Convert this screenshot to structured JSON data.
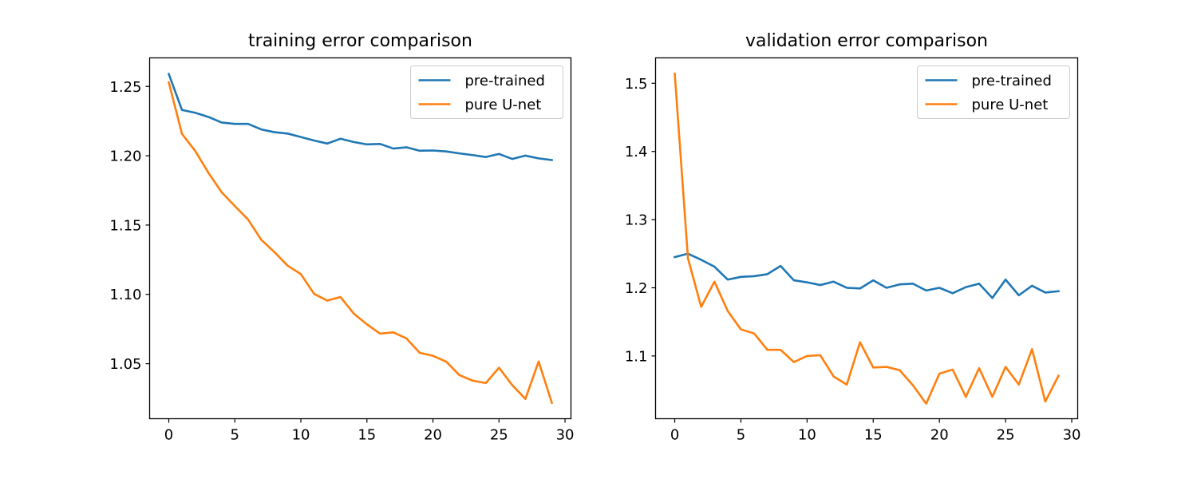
{
  "chart_data": [
    {
      "type": "line",
      "title": "training error comparison",
      "xlabel": "",
      "ylabel": "",
      "xlim": [
        -1.45,
        30.45
      ],
      "ylim": [
        1.0103,
        1.2706
      ],
      "xticks": [
        0,
        5,
        10,
        15,
        20,
        25,
        30
      ],
      "yticks": [
        1.05,
        1.1,
        1.15,
        1.2,
        1.25
      ],
      "ytick_labels": [
        "1.05",
        "1.10",
        "1.15",
        "1.20",
        "1.25"
      ],
      "grid": false,
      "legend": "top-right",
      "x": [
        0,
        1,
        2,
        3,
        4,
        5,
        6,
        7,
        8,
        9,
        10,
        11,
        12,
        13,
        14,
        15,
        16,
        17,
        18,
        19,
        20,
        21,
        22,
        23,
        24,
        25,
        26,
        27,
        28,
        29
      ],
      "series": [
        {
          "name": "pre-trained",
          "color": "#1f77b4",
          "values": [
            1.259,
            1.233,
            1.231,
            1.228,
            1.224,
            1.223,
            1.223,
            1.219,
            1.217,
            1.216,
            1.2135,
            1.211,
            1.2088,
            1.2123,
            1.2099,
            1.2082,
            1.2085,
            1.2052,
            1.2061,
            1.2036,
            1.2038,
            1.2031,
            1.2017,
            1.2005,
            1.1991,
            1.2013,
            1.1977,
            1.2001,
            1.1981,
            1.1969
          ]
        },
        {
          "name": "pure U-net",
          "color": "#ff7f0e",
          "values": [
            1.253,
            1.2158,
            1.2035,
            1.1877,
            1.1737,
            1.1637,
            1.154,
            1.1394,
            1.1305,
            1.1207,
            1.1146,
            1.1004,
            1.0955,
            1.0981,
            1.0862,
            1.0784,
            1.0717,
            1.0726,
            1.0682,
            1.0578,
            1.0557,
            1.0515,
            1.0418,
            1.0378,
            1.036,
            1.0471,
            1.0346,
            1.0246,
            1.0516,
            1.0218
          ]
        }
      ]
    },
    {
      "type": "line",
      "title": "validation error comparison",
      "xlabel": "",
      "ylabel": "",
      "xlim": [
        -1.45,
        30.45
      ],
      "ylim": [
        1.0079,
        1.5373
      ],
      "xticks": [
        0,
        5,
        10,
        15,
        20,
        25,
        30
      ],
      "yticks": [
        1.1,
        1.2,
        1.3,
        1.4,
        1.5
      ],
      "ytick_labels": [
        "1.1",
        "1.2",
        "1.3",
        "1.4",
        "1.5"
      ],
      "grid": false,
      "legend": "top-right",
      "x": [
        0,
        1,
        2,
        3,
        4,
        5,
        6,
        7,
        8,
        9,
        10,
        11,
        12,
        13,
        14,
        15,
        16,
        17,
        18,
        19,
        20,
        21,
        22,
        23,
        24,
        25,
        26,
        27,
        28,
        29
      ],
      "series": [
        {
          "name": "pre-trained",
          "color": "#1f77b4",
          "values": [
            1.245,
            1.25,
            1.241,
            1.231,
            1.212,
            1.216,
            1.217,
            1.22,
            1.232,
            1.211,
            1.208,
            1.204,
            1.209,
            1.2,
            1.199,
            1.211,
            1.2,
            1.205,
            1.206,
            1.196,
            1.2,
            1.192,
            1.201,
            1.206,
            1.185,
            1.212,
            1.189,
            1.203,
            1.193,
            1.195
          ]
        },
        {
          "name": "pure U-net",
          "color": "#ff7f0e",
          "values": [
            1.514,
            1.243,
            1.172,
            1.209,
            1.166,
            1.139,
            1.133,
            1.109,
            1.109,
            1.091,
            1.1,
            1.101,
            1.07,
            1.058,
            1.12,
            1.083,
            1.084,
            1.079,
            1.057,
            1.03,
            1.074,
            1.08,
            1.04,
            1.082,
            1.04,
            1.084,
            1.058,
            1.11,
            1.033,
            1.071
          ]
        }
      ]
    }
  ]
}
